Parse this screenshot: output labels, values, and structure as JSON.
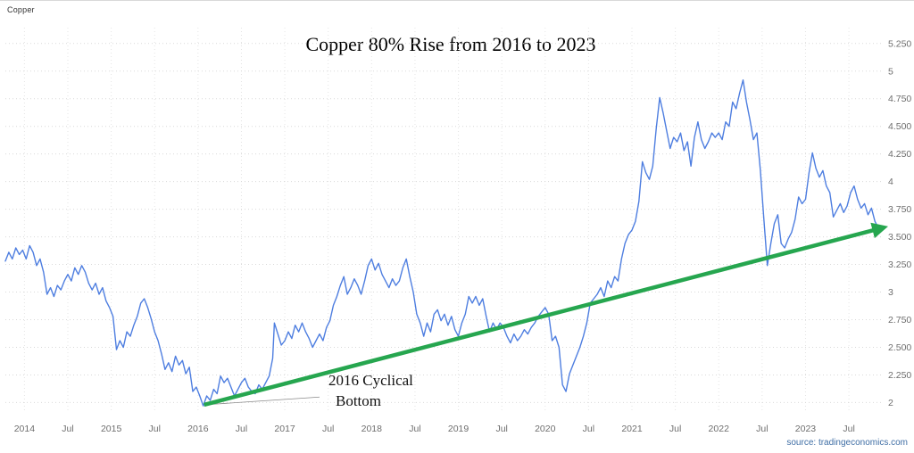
{
  "header": {
    "instrument": "Copper"
  },
  "title": "Copper 80% Rise from 2016 to 2023",
  "annotation": {
    "line1": "2016 Cyclical",
    "line2": "Bottom"
  },
  "source": "source: tradingeconomics.com",
  "colors": {
    "line": "#4e7ee0",
    "arrow": "#26a64f",
    "grid_h": "#d9d9d9",
    "grid_v": "#e4e4e4",
    "tick_text": "#6e6e6e",
    "source_text": "#3f6ea5",
    "leader": "#8a8a8a"
  },
  "chart_data": {
    "type": "line",
    "title": "Copper 80% Rise from 2016 to 2023",
    "legend": "none",
    "grid": "dotted",
    "xlim": [
      2013.78,
      2023.89
    ],
    "ylim": [
      1.85,
      5.45
    ],
    "x_ticks": [
      [
        2014,
        "2014"
      ],
      [
        2014.5,
        "Jul"
      ],
      [
        2015,
        "2015"
      ],
      [
        2015.5,
        "Jul"
      ],
      [
        2016,
        "2016"
      ],
      [
        2016.5,
        "Jul"
      ],
      [
        2017,
        "2017"
      ],
      [
        2017.5,
        "Jul"
      ],
      [
        2018,
        "2018"
      ],
      [
        2018.5,
        "Jul"
      ],
      [
        2019,
        "2019"
      ],
      [
        2019.5,
        "Jul"
      ],
      [
        2020,
        "2020"
      ],
      [
        2020.5,
        "Jul"
      ],
      [
        2021,
        "2021"
      ],
      [
        2021.5,
        "Jul"
      ],
      [
        2022,
        "2022"
      ],
      [
        2022.5,
        "Jul"
      ],
      [
        2023,
        "2023"
      ],
      [
        2023.5,
        "Jul"
      ]
    ],
    "y_ticks": [
      [
        5.25,
        "5.250"
      ],
      [
        5,
        "5"
      ],
      [
        4.75,
        "4.750"
      ],
      [
        4.5,
        "4.500"
      ],
      [
        4.25,
        "4.250"
      ],
      [
        4,
        "4"
      ],
      [
        3.75,
        "3.750"
      ],
      [
        3.5,
        "3.500"
      ],
      [
        3.25,
        "3.250"
      ],
      [
        3,
        "3"
      ],
      [
        2.75,
        "2.750"
      ],
      [
        2.5,
        "2.500"
      ],
      [
        2.25,
        "2.250"
      ],
      [
        2,
        "2"
      ]
    ],
    "series": [
      {
        "name": "Copper",
        "color": "#4e7ee0",
        "points": [
          [
            2013.78,
            3.28
          ],
          [
            2013.82,
            3.36
          ],
          [
            2013.86,
            3.3
          ],
          [
            2013.9,
            3.4
          ],
          [
            2013.94,
            3.34
          ],
          [
            2013.98,
            3.38
          ],
          [
            2014.02,
            3.3
          ],
          [
            2014.06,
            3.42
          ],
          [
            2014.1,
            3.36
          ],
          [
            2014.14,
            3.24
          ],
          [
            2014.18,
            3.3
          ],
          [
            2014.22,
            3.18
          ],
          [
            2014.26,
            2.98
          ],
          [
            2014.3,
            3.04
          ],
          [
            2014.34,
            2.96
          ],
          [
            2014.38,
            3.06
          ],
          [
            2014.42,
            3.02
          ],
          [
            2014.46,
            3.1
          ],
          [
            2014.5,
            3.16
          ],
          [
            2014.54,
            3.1
          ],
          [
            2014.58,
            3.22
          ],
          [
            2014.62,
            3.16
          ],
          [
            2014.66,
            3.24
          ],
          [
            2014.7,
            3.18
          ],
          [
            2014.74,
            3.08
          ],
          [
            2014.78,
            3.02
          ],
          [
            2014.82,
            3.08
          ],
          [
            2014.86,
            2.98
          ],
          [
            2014.9,
            3.04
          ],
          [
            2014.94,
            2.92
          ],
          [
            2014.98,
            2.86
          ],
          [
            2015.02,
            2.78
          ],
          [
            2015.06,
            2.48
          ],
          [
            2015.1,
            2.56
          ],
          [
            2015.14,
            2.5
          ],
          [
            2015.18,
            2.64
          ],
          [
            2015.22,
            2.6
          ],
          [
            2015.26,
            2.7
          ],
          [
            2015.3,
            2.78
          ],
          [
            2015.34,
            2.9
          ],
          [
            2015.38,
            2.94
          ],
          [
            2015.42,
            2.86
          ],
          [
            2015.46,
            2.76
          ],
          [
            2015.5,
            2.64
          ],
          [
            2015.54,
            2.56
          ],
          [
            2015.58,
            2.44
          ],
          [
            2015.62,
            2.3
          ],
          [
            2015.66,
            2.36
          ],
          [
            2015.7,
            2.28
          ],
          [
            2015.74,
            2.42
          ],
          [
            2015.78,
            2.34
          ],
          [
            2015.82,
            2.38
          ],
          [
            2015.86,
            2.26
          ],
          [
            2015.9,
            2.32
          ],
          [
            2015.94,
            2.1
          ],
          [
            2015.98,
            2.14
          ],
          [
            2016.02,
            2.06
          ],
          [
            2016.06,
            1.97
          ],
          [
            2016.1,
            2.06
          ],
          [
            2016.14,
            2.02
          ],
          [
            2016.18,
            2.12
          ],
          [
            2016.22,
            2.08
          ],
          [
            2016.26,
            2.24
          ],
          [
            2016.3,
            2.18
          ],
          [
            2016.34,
            2.22
          ],
          [
            2016.38,
            2.14
          ],
          [
            2016.42,
            2.06
          ],
          [
            2016.46,
            2.12
          ],
          [
            2016.5,
            2.18
          ],
          [
            2016.54,
            2.22
          ],
          [
            2016.58,
            2.14
          ],
          [
            2016.62,
            2.1
          ],
          [
            2016.66,
            2.08
          ],
          [
            2016.7,
            2.16
          ],
          [
            2016.74,
            2.12
          ],
          [
            2016.78,
            2.18
          ],
          [
            2016.82,
            2.24
          ],
          [
            2016.86,
            2.4
          ],
          [
            2016.88,
            2.72
          ],
          [
            2016.92,
            2.62
          ],
          [
            2016.96,
            2.52
          ],
          [
            2017.0,
            2.56
          ],
          [
            2017.04,
            2.64
          ],
          [
            2017.08,
            2.58
          ],
          [
            2017.12,
            2.7
          ],
          [
            2017.16,
            2.64
          ],
          [
            2017.2,
            2.72
          ],
          [
            2017.24,
            2.64
          ],
          [
            2017.28,
            2.58
          ],
          [
            2017.32,
            2.5
          ],
          [
            2017.36,
            2.56
          ],
          [
            2017.4,
            2.62
          ],
          [
            2017.44,
            2.56
          ],
          [
            2017.48,
            2.68
          ],
          [
            2017.52,
            2.74
          ],
          [
            2017.56,
            2.88
          ],
          [
            2017.6,
            2.96
          ],
          [
            2017.64,
            3.06
          ],
          [
            2017.68,
            3.14
          ],
          [
            2017.72,
            2.98
          ],
          [
            2017.76,
            3.04
          ],
          [
            2017.8,
            3.12
          ],
          [
            2017.84,
            3.06
          ],
          [
            2017.88,
            2.98
          ],
          [
            2017.92,
            3.1
          ],
          [
            2017.96,
            3.24
          ],
          [
            2018.0,
            3.3
          ],
          [
            2018.04,
            3.2
          ],
          [
            2018.08,
            3.26
          ],
          [
            2018.12,
            3.16
          ],
          [
            2018.16,
            3.1
          ],
          [
            2018.2,
            3.04
          ],
          [
            2018.24,
            3.12
          ],
          [
            2018.28,
            3.06
          ],
          [
            2018.32,
            3.1
          ],
          [
            2018.36,
            3.22
          ],
          [
            2018.4,
            3.3
          ],
          [
            2018.44,
            3.14
          ],
          [
            2018.48,
            3.0
          ],
          [
            2018.52,
            2.8
          ],
          [
            2018.56,
            2.72
          ],
          [
            2018.6,
            2.6
          ],
          [
            2018.64,
            2.72
          ],
          [
            2018.68,
            2.64
          ],
          [
            2018.72,
            2.8
          ],
          [
            2018.76,
            2.84
          ],
          [
            2018.8,
            2.74
          ],
          [
            2018.84,
            2.8
          ],
          [
            2018.88,
            2.7
          ],
          [
            2018.92,
            2.78
          ],
          [
            2018.96,
            2.66
          ],
          [
            2019.0,
            2.6
          ],
          [
            2019.04,
            2.72
          ],
          [
            2019.08,
            2.8
          ],
          [
            2019.12,
            2.96
          ],
          [
            2019.16,
            2.9
          ],
          [
            2019.2,
            2.96
          ],
          [
            2019.24,
            2.88
          ],
          [
            2019.28,
            2.94
          ],
          [
            2019.32,
            2.78
          ],
          [
            2019.36,
            2.64
          ],
          [
            2019.4,
            2.72
          ],
          [
            2019.44,
            2.66
          ],
          [
            2019.48,
            2.72
          ],
          [
            2019.52,
            2.68
          ],
          [
            2019.56,
            2.6
          ],
          [
            2019.6,
            2.54
          ],
          [
            2019.64,
            2.62
          ],
          [
            2019.68,
            2.56
          ],
          [
            2019.72,
            2.6
          ],
          [
            2019.76,
            2.66
          ],
          [
            2019.8,
            2.62
          ],
          [
            2019.84,
            2.68
          ],
          [
            2019.88,
            2.72
          ],
          [
            2019.92,
            2.78
          ],
          [
            2019.96,
            2.82
          ],
          [
            2020.0,
            2.86
          ],
          [
            2020.04,
            2.8
          ],
          [
            2020.08,
            2.56
          ],
          [
            2020.12,
            2.6
          ],
          [
            2020.16,
            2.5
          ],
          [
            2020.2,
            2.16
          ],
          [
            2020.24,
            2.1
          ],
          [
            2020.28,
            2.26
          ],
          [
            2020.32,
            2.34
          ],
          [
            2020.36,
            2.42
          ],
          [
            2020.4,
            2.5
          ],
          [
            2020.44,
            2.6
          ],
          [
            2020.48,
            2.72
          ],
          [
            2020.52,
            2.9
          ],
          [
            2020.56,
            2.94
          ],
          [
            2020.6,
            2.98
          ],
          [
            2020.64,
            3.04
          ],
          [
            2020.68,
            2.96
          ],
          [
            2020.72,
            3.1
          ],
          [
            2020.76,
            3.04
          ],
          [
            2020.8,
            3.14
          ],
          [
            2020.84,
            3.1
          ],
          [
            2020.88,
            3.3
          ],
          [
            2020.92,
            3.44
          ],
          [
            2020.96,
            3.52
          ],
          [
            2021.0,
            3.56
          ],
          [
            2021.04,
            3.64
          ],
          [
            2021.08,
            3.82
          ],
          [
            2021.12,
            4.18
          ],
          [
            2021.16,
            4.08
          ],
          [
            2021.2,
            4.02
          ],
          [
            2021.24,
            4.14
          ],
          [
            2021.28,
            4.48
          ],
          [
            2021.32,
            4.76
          ],
          [
            2021.36,
            4.62
          ],
          [
            2021.4,
            4.46
          ],
          [
            2021.44,
            4.3
          ],
          [
            2021.48,
            4.4
          ],
          [
            2021.52,
            4.36
          ],
          [
            2021.56,
            4.44
          ],
          [
            2021.6,
            4.28
          ],
          [
            2021.64,
            4.36
          ],
          [
            2021.68,
            4.14
          ],
          [
            2021.72,
            4.4
          ],
          [
            2021.76,
            4.54
          ],
          [
            2021.8,
            4.38
          ],
          [
            2021.84,
            4.3
          ],
          [
            2021.88,
            4.36
          ],
          [
            2021.92,
            4.44
          ],
          [
            2021.96,
            4.4
          ],
          [
            2022.0,
            4.44
          ],
          [
            2022.04,
            4.38
          ],
          [
            2022.08,
            4.54
          ],
          [
            2022.12,
            4.5
          ],
          [
            2022.16,
            4.72
          ],
          [
            2022.2,
            4.66
          ],
          [
            2022.24,
            4.8
          ],
          [
            2022.28,
            4.92
          ],
          [
            2022.32,
            4.72
          ],
          [
            2022.36,
            4.56
          ],
          [
            2022.4,
            4.38
          ],
          [
            2022.44,
            4.44
          ],
          [
            2022.48,
            4.1
          ],
          [
            2022.52,
            3.66
          ],
          [
            2022.56,
            3.24
          ],
          [
            2022.6,
            3.44
          ],
          [
            2022.64,
            3.62
          ],
          [
            2022.68,
            3.7
          ],
          [
            2022.72,
            3.44
          ],
          [
            2022.76,
            3.4
          ],
          [
            2022.8,
            3.48
          ],
          [
            2022.84,
            3.54
          ],
          [
            2022.88,
            3.66
          ],
          [
            2022.92,
            3.86
          ],
          [
            2022.96,
            3.8
          ],
          [
            2023.0,
            3.84
          ],
          [
            2023.04,
            4.08
          ],
          [
            2023.08,
            4.26
          ],
          [
            2023.12,
            4.12
          ],
          [
            2023.16,
            4.04
          ],
          [
            2023.2,
            4.1
          ],
          [
            2023.24,
            3.96
          ],
          [
            2023.28,
            3.9
          ],
          [
            2023.32,
            3.68
          ],
          [
            2023.36,
            3.74
          ],
          [
            2023.4,
            3.8
          ],
          [
            2023.44,
            3.72
          ],
          [
            2023.48,
            3.78
          ],
          [
            2023.52,
            3.9
          ],
          [
            2023.56,
            3.96
          ],
          [
            2023.6,
            3.84
          ],
          [
            2023.64,
            3.76
          ],
          [
            2023.68,
            3.8
          ],
          [
            2023.72,
            3.7
          ],
          [
            2023.76,
            3.76
          ],
          [
            2023.8,
            3.64
          ],
          [
            2023.84,
            3.58
          ]
        ]
      }
    ],
    "trend_arrow": {
      "from": [
        2016.07,
        1.98
      ],
      "to": [
        2023.88,
        3.58
      ],
      "color": "#26a64f"
    },
    "annotations": [
      {
        "text": "2016 Cyclical Bottom",
        "target": [
          2016.08,
          1.98
        ],
        "leader_from": [
          2017.4,
          2.05
        ]
      }
    ]
  }
}
